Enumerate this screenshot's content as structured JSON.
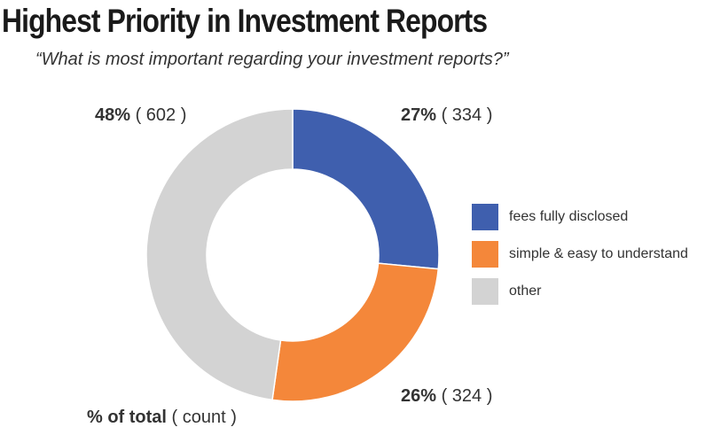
{
  "title": "Highest Priority in Investment Reports",
  "subtitle": "“What is most important regarding your investment reports?”",
  "footer": {
    "bold": "% of total",
    "rest": " ( count )"
  },
  "chart_data": {
    "type": "pie",
    "donut": true,
    "title": "Highest Priority in Investment Reports",
    "subtitle": "“What is most important regarding your investment reports?”",
    "legend_position": "right",
    "slices": [
      {
        "label": "fees fully disclosed",
        "value": 334,
        "percent": "27%",
        "count_text": " ( 334 )",
        "color": "#3f5fae"
      },
      {
        "label": "simple & easy to understand",
        "value": 324,
        "percent": "26%",
        "count_text": " ( 324 )",
        "color": "#f4873a"
      },
      {
        "label": "other",
        "value": 602,
        "percent": "48%",
        "count_text": " ( 602 )",
        "color": "#d3d3d3"
      }
    ]
  }
}
